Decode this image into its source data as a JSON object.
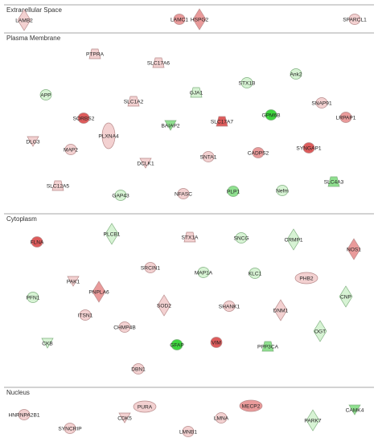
{
  "colors": {
    "red_strong": "#dd5b5b",
    "red_medium": "#e99a9a",
    "red_light": "#f3d1d1",
    "green_strong": "#3ed63e",
    "green_medium": "#8fe08f",
    "green_light": "#d7f3d4",
    "stroke_red": "#b88a8a",
    "stroke_green": "#7fb07f"
  },
  "sections": [
    {
      "id": "extracellular",
      "title": "Extracellular Space"
    },
    {
      "id": "plasma",
      "title": "Plasma Membrane"
    },
    {
      "id": "cytoplasm",
      "title": "Cytoplasm"
    },
    {
      "id": "nucleus",
      "title": "Nucleus"
    }
  ],
  "nodes": [
    {
      "label": "LAMB2",
      "shape": "diamond",
      "fill": "red_light"
    },
    {
      "label": "LAMC1",
      "shape": "ellipse",
      "fill": "red_medium"
    },
    {
      "label": "HSPG2",
      "shape": "diamond",
      "fill": "red_medium"
    },
    {
      "label": "SPARCL1",
      "shape": "ellipse",
      "fill": "red_light"
    },
    {
      "label": "PTPRA",
      "shape": "trapezoid",
      "fill": "red_light"
    },
    {
      "label": "SLC17A6",
      "shape": "trapezoid",
      "fill": "red_light"
    },
    {
      "label": "APP",
      "shape": "ellipse",
      "fill": "green_light"
    },
    {
      "label": "GJA1",
      "shape": "trapezoid",
      "fill": "green_light"
    },
    {
      "label": "STX1B",
      "shape": "ellipse",
      "fill": "green_light"
    },
    {
      "label": "Ank2",
      "shape": "ellipse",
      "fill": "green_light"
    },
    {
      "label": "SLC1A2",
      "shape": "trapezoid",
      "fill": "red_light"
    },
    {
      "label": "SNAP91",
      "shape": "ellipse",
      "fill": "red_light"
    },
    {
      "label": "SORBS2",
      "shape": "ellipse",
      "fill": "red_strong"
    },
    {
      "label": "PLXNA4",
      "shape": "tall-ellipse",
      "fill": "red_light"
    },
    {
      "label": "BAIAP2",
      "shape": "triangle-down",
      "fill": "green_medium"
    },
    {
      "label": "SLC17A7",
      "shape": "trapezoid",
      "fill": "red_strong"
    },
    {
      "label": "GPM6B",
      "shape": "ellipse",
      "fill": "green_strong"
    },
    {
      "label": "LRPAP1",
      "shape": "ellipse",
      "fill": "red_medium"
    },
    {
      "label": "DLG3",
      "shape": "triangle-down",
      "fill": "red_light"
    },
    {
      "label": "MAP2",
      "shape": "ellipse",
      "fill": "red_light"
    },
    {
      "label": "SYNGAP1",
      "shape": "ellipse",
      "fill": "red_strong"
    },
    {
      "label": "CADPS2",
      "shape": "ellipse",
      "fill": "red_medium"
    },
    {
      "label": "SNTA1",
      "shape": "ellipse",
      "fill": "red_light"
    },
    {
      "label": "DCLK1",
      "shape": "triangle-down",
      "fill": "red_light"
    },
    {
      "label": "SLC12A5",
      "shape": "trapezoid",
      "fill": "red_light"
    },
    {
      "label": "GAP43",
      "shape": "ellipse",
      "fill": "green_light"
    },
    {
      "label": "NFASC",
      "shape": "ellipse",
      "fill": "red_light"
    },
    {
      "label": "PLP1",
      "shape": "ellipse",
      "fill": "green_medium"
    },
    {
      "label": "Nefm",
      "shape": "ellipse",
      "fill": "green_light"
    },
    {
      "label": "SLC4A3",
      "shape": "trapezoid",
      "fill": "green_medium"
    },
    {
      "label": "FLNA",
      "shape": "ellipse",
      "fill": "red_strong"
    },
    {
      "label": "PLCB1",
      "shape": "diamond",
      "fill": "green_light"
    },
    {
      "label": "STX1A",
      "shape": "trapezoid",
      "fill": "red_light"
    },
    {
      "label": "SNCG",
      "shape": "ellipse",
      "fill": "green_light"
    },
    {
      "label": "CRMP1",
      "shape": "diamond",
      "fill": "green_light"
    },
    {
      "label": "NOS1",
      "shape": "diamond",
      "fill": "red_medium"
    },
    {
      "label": "SRCIN1",
      "shape": "ellipse",
      "fill": "red_light"
    },
    {
      "label": "MAP1A",
      "shape": "ellipse",
      "fill": "green_light"
    },
    {
      "label": "KLC1",
      "shape": "ellipse",
      "fill": "green_light"
    },
    {
      "label": "PHB2",
      "shape": "wide-ellipse",
      "fill": "red_light"
    },
    {
      "label": "PFN1",
      "shape": "ellipse",
      "fill": "green_light"
    },
    {
      "label": "PAK1",
      "shape": "triangle-down",
      "fill": "red_light"
    },
    {
      "label": "PNPLA6",
      "shape": "diamond",
      "fill": "red_medium"
    },
    {
      "label": "CNP",
      "shape": "diamond",
      "fill": "green_light"
    },
    {
      "label": "SOD2",
      "shape": "diamond",
      "fill": "red_light"
    },
    {
      "label": "SHANK1",
      "shape": "ellipse",
      "fill": "red_light"
    },
    {
      "label": "DNM1",
      "shape": "diamond",
      "fill": "red_light"
    },
    {
      "label": "ITSN1",
      "shape": "ellipse",
      "fill": "red_light"
    },
    {
      "label": "CHMP4B",
      "shape": "ellipse",
      "fill": "red_light"
    },
    {
      "label": "OGT",
      "shape": "diamond",
      "fill": "green_light"
    },
    {
      "label": "CKB",
      "shape": "triangle-down",
      "fill": "green_light"
    },
    {
      "label": "GFAP",
      "shape": "ellipse",
      "fill": "green_strong"
    },
    {
      "label": "VIM",
      "shape": "ellipse",
      "fill": "red_strong"
    },
    {
      "label": "PPP3CA",
      "shape": "trapezoid",
      "fill": "green_medium"
    },
    {
      "label": "DBN1",
      "shape": "ellipse",
      "fill": "red_light"
    },
    {
      "label": "HNRNPA2B1",
      "shape": "ellipse",
      "fill": "red_light"
    },
    {
      "label": "PURA",
      "shape": "wide-ellipse",
      "fill": "red_light"
    },
    {
      "label": "MECP2",
      "shape": "wide-ellipse",
      "fill": "red_medium"
    },
    {
      "label": "CAMK4",
      "shape": "triangle-down",
      "fill": "green_medium"
    },
    {
      "label": "SYNCRIP",
      "shape": "ellipse",
      "fill": "red_light"
    },
    {
      "label": "CDK5",
      "shape": "triangle-down",
      "fill": "red_light"
    },
    {
      "label": "LMNA",
      "shape": "ellipse",
      "fill": "red_light"
    },
    {
      "label": "PARK7",
      "shape": "diamond",
      "fill": "green_light"
    },
    {
      "label": "LMNB1",
      "shape": "ellipse",
      "fill": "red_light"
    }
  ]
}
